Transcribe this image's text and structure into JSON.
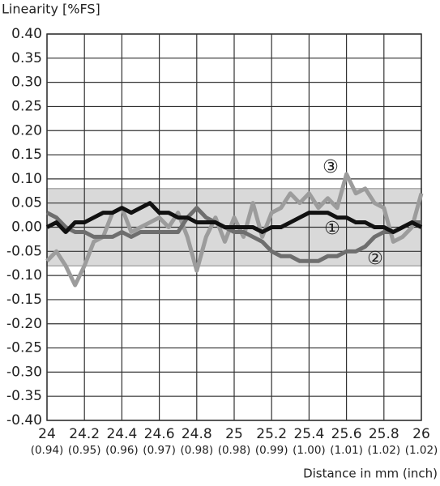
{
  "chart_data": {
    "type": "line",
    "y_label": "Linearity [%FS]",
    "x_label": "Distance in mm (inch)",
    "x": [
      24,
      24.05,
      24.1,
      24.15,
      24.2,
      24.25,
      24.3,
      24.35,
      24.4,
      24.45,
      24.5,
      24.55,
      24.6,
      24.65,
      24.7,
      24.75,
      24.8,
      24.85,
      24.9,
      24.95,
      25,
      25.05,
      25.1,
      25.15,
      25.2,
      25.25,
      25.3,
      25.35,
      25.4,
      25.45,
      25.5,
      25.55,
      25.6,
      25.65,
      25.7,
      25.75,
      25.8,
      25.85,
      25.9,
      25.95,
      26
    ],
    "series": [
      {
        "name": "①",
        "color": "#111111",
        "values": [
          0,
          0.01,
          -0.01,
          0.01,
          0.01,
          0.02,
          0.03,
          0.03,
          0.04,
          0.03,
          0.04,
          0.05,
          0.03,
          0.03,
          0.02,
          0.02,
          0.01,
          0.01,
          0.01,
          0,
          0,
          0,
          0,
          -0.01,
          0,
          0,
          0.01,
          0.02,
          0.03,
          0.03,
          0.03,
          0.02,
          0.02,
          0.01,
          0.01,
          0,
          0,
          -0.01,
          0,
          0.01,
          0
        ]
      },
      {
        "name": "②",
        "color": "#6e6e6e",
        "values": [
          0.03,
          0.02,
          0,
          -0.01,
          -0.01,
          -0.02,
          -0.02,
          -0.02,
          -0.01,
          -0.02,
          -0.01,
          -0.01,
          -0.01,
          -0.01,
          -0.01,
          0.02,
          0.04,
          0.02,
          0.01,
          0,
          -0.01,
          -0.01,
          -0.02,
          -0.03,
          -0.05,
          -0.06,
          -0.06,
          -0.07,
          -0.07,
          -0.07,
          -0.06,
          -0.06,
          -0.05,
          -0.05,
          -0.04,
          -0.02,
          -0.01,
          -0.01,
          0,
          0.01,
          0.01
        ]
      },
      {
        "name": "③",
        "color": "#9c9c9c",
        "values": [
          -0.07,
          -0.05,
          -0.08,
          -0.12,
          -0.08,
          -0.03,
          -0.02,
          0.03,
          0.04,
          -0.01,
          0,
          0.01,
          0.02,
          0,
          0.03,
          -0.02,
          -0.09,
          -0.02,
          0.02,
          -0.03,
          0.02,
          -0.02,
          0.05,
          -0.02,
          0.03,
          0.04,
          0.07,
          0.05,
          0.07,
          0.04,
          0.06,
          0.04,
          0.11,
          0.07,
          0.08,
          0.05,
          0.04,
          -0.03,
          -0.02,
          0,
          0.07
        ]
      }
    ],
    "band": [
      -0.08,
      0.08
    ],
    "band_color": "#d9d9d9",
    "xlim": [
      24,
      26
    ],
    "xticks": [
      24,
      24.2,
      24.4,
      24.6,
      24.8,
      25,
      25.2,
      25.4,
      25.6,
      25.8,
      26
    ],
    "xticks_inch": [
      "(0.94)",
      "(0.95)",
      "(0.96)",
      "(0.97)",
      "(0.98)",
      "(0.98)",
      "(0.99)",
      "(1.00)",
      "(1.01)",
      "(1.02)",
      "(1.02)"
    ],
    "ylim": [
      -0.4,
      0.4
    ],
    "yticks": [
      {
        "value": 0.4,
        "label": "0.40"
      },
      {
        "value": 0.35,
        "label": "0.35"
      },
      {
        "value": 0.3,
        "label": "0.30"
      },
      {
        "value": 0.25,
        "label": "0.25"
      },
      {
        "value": 0.2,
        "label": "0.20"
      },
      {
        "value": 0.15,
        "label": "0.15"
      },
      {
        "value": 0.1,
        "label": "0.10"
      },
      {
        "value": 0.05,
        "label": "0.05"
      },
      {
        "value": 0,
        "label": "0.00"
      },
      {
        "value": -0.05,
        "label": "-0.05"
      },
      {
        "value": -0.1,
        "label": "-0.10"
      },
      {
        "value": -0.15,
        "label": "-0.15"
      },
      {
        "value": -0.2,
        "label": "-0.20"
      },
      {
        "value": -0.25,
        "label": "-0.25"
      },
      {
        "value": -0.3,
        "label": "-0.30"
      },
      {
        "value": -0.35,
        "label": "-0.35"
      },
      {
        "value": -0.4,
        "label": "-0.40"
      }
    ],
    "grid": true
  }
}
